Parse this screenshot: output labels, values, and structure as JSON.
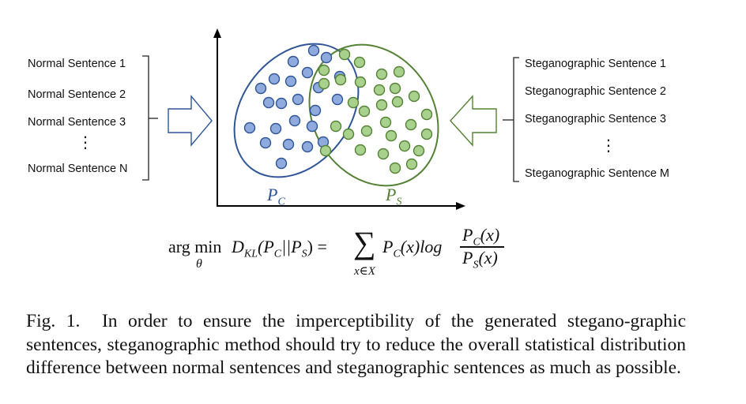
{
  "left_group": {
    "items": [
      "Normal Sentence 1",
      "Normal Sentence 2",
      "Normal Sentence 3",
      "Normal Sentence N"
    ],
    "ellipsis": "⋮"
  },
  "right_group": {
    "items": [
      "Steganographic Sentence 1",
      "Steganographic Sentence 2",
      "Steganographic Sentence 3",
      "Steganographic Sentence M"
    ],
    "ellipsis": "⋮"
  },
  "distributions": {
    "pc_label": "P",
    "pc_sub": "C",
    "ps_label": "P",
    "ps_sub": "S",
    "pc_color": "#2f5597",
    "pc_fill": "#8faadc",
    "ps_color": "#548235",
    "ps_fill": "#a9d18e"
  },
  "formula": {
    "argmin": "arg min",
    "theta": "θ",
    "D": "D",
    "KL": "KL",
    "lhs_args": "(P",
    "C": "C",
    "sep": "||P",
    "S": "S",
    "close_eq": ") =",
    "sigma": "∑",
    "sum_sub": "x∈X",
    "term": "P",
    "term_sub": "C",
    "term_rest": "(x)log",
    "num": "P",
    "num_sub": "C",
    "num_rest": "(x)",
    "den": "P",
    "den_sub": "S",
    "den_rest": "(x)"
  },
  "caption": {
    "number": "Fig. 1.",
    "text": "In order to ensure the imperceptibility of the generated stegano-graphic sentences, steganographic method should try to reduce the overall statistical distribution difference between normal sentences and steganographic sentences as much as possible."
  }
}
